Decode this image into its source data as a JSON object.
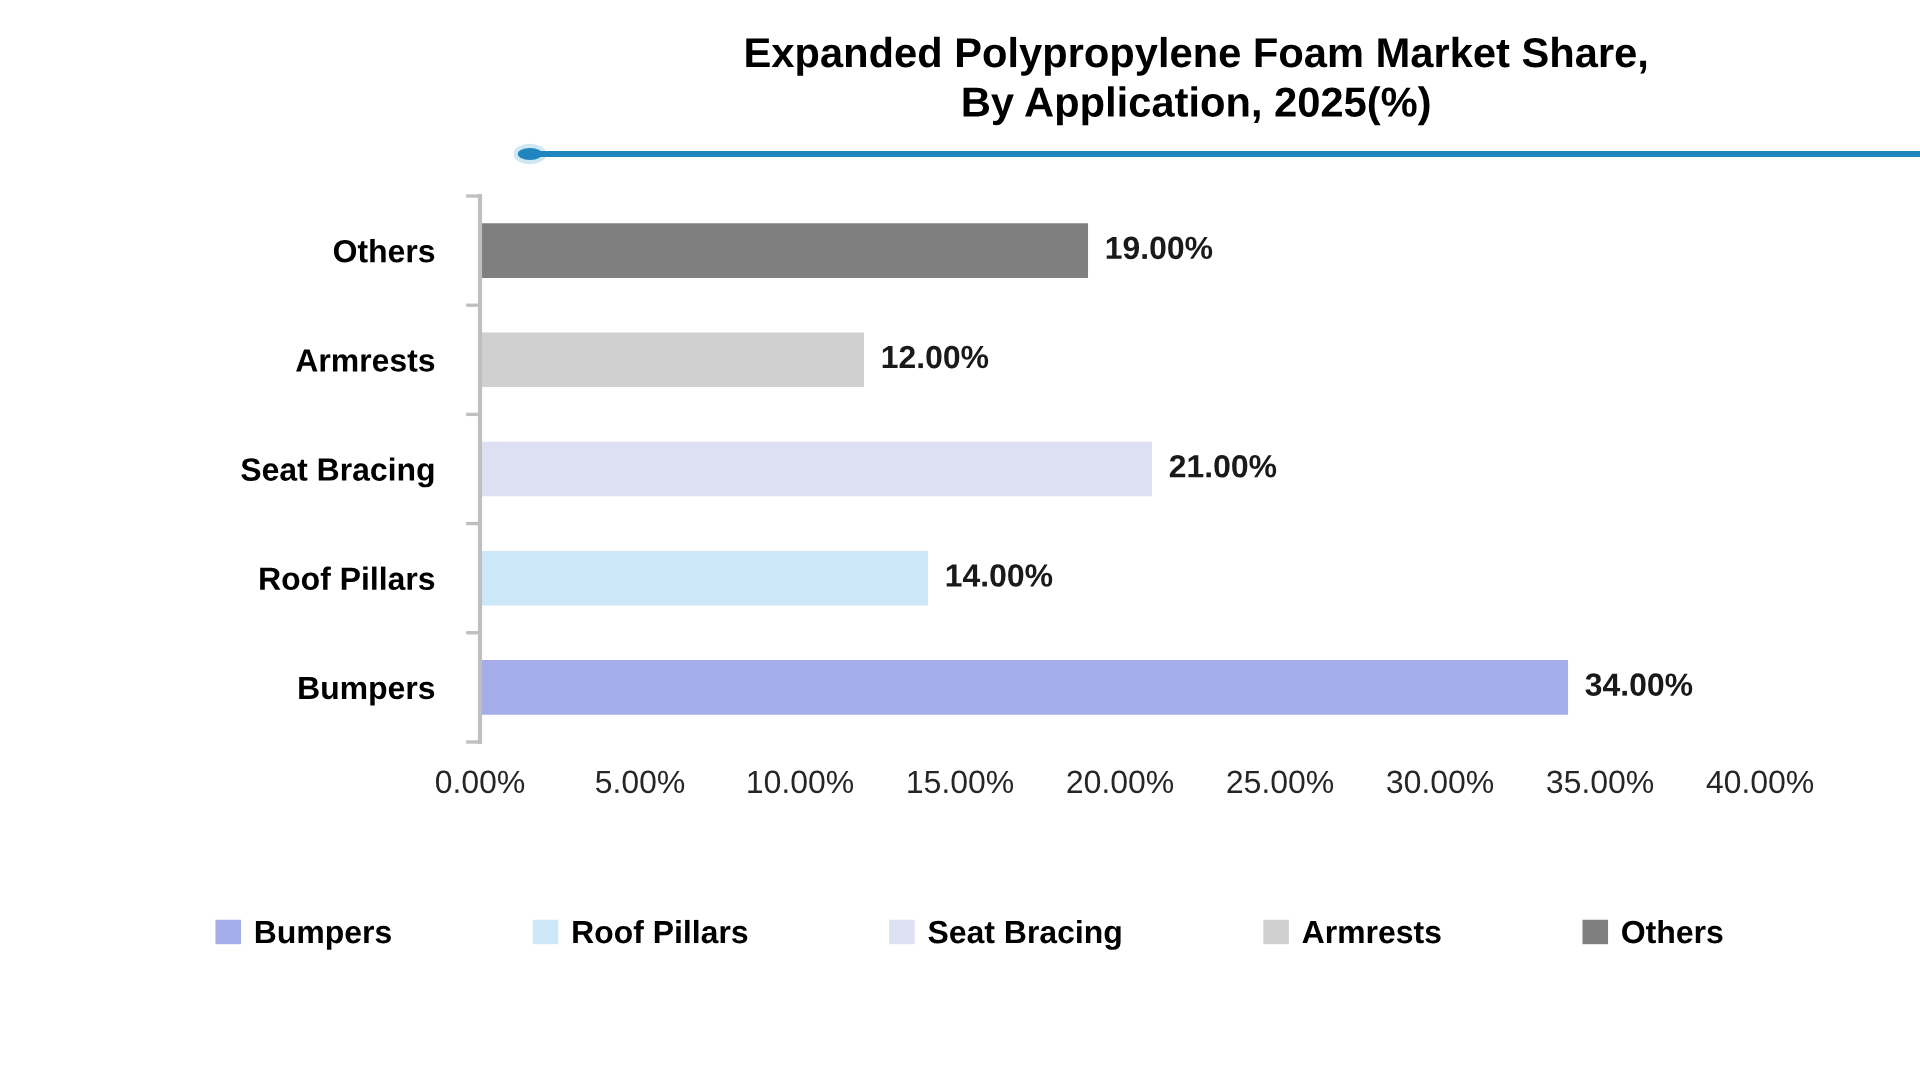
{
  "chart_data": {
    "type": "bar",
    "orientation": "horizontal",
    "stacked": true,
    "title": "Expanded Polypropylene Foam Market Share,\nBy Application, 2025(%)",
    "categories": [
      "Others",
      "Armrests",
      "Seat Bracing",
      "Roof Pillars",
      "Bumpers"
    ],
    "series": [
      {
        "name": "Bumpers",
        "color": "#a5acea",
        "values": [
          null,
          null,
          null,
          null,
          34
        ],
        "value_labels": [
          null,
          null,
          null,
          null,
          "34.00%"
        ]
      },
      {
        "name": "Roof Pillars",
        "color": "#cce8f8",
        "values": [
          null,
          null,
          null,
          14,
          null
        ],
        "value_labels": [
          null,
          null,
          null,
          "14.00%",
          null
        ]
      },
      {
        "name": "Seat Bracing",
        "color": "#dde0f2",
        "values": [
          null,
          null,
          21,
          null,
          null
        ],
        "value_labels": [
          null,
          null,
          "21.00%",
          null,
          null
        ]
      },
      {
        "name": "Armrests",
        "color": "#d0d0d0",
        "values": [
          null,
          12,
          null,
          null,
          null
        ],
        "value_labels": [
          null,
          "12.00%",
          null,
          null,
          null
        ]
      },
      {
        "name": "Others",
        "color": "#7f7f7f",
        "values": [
          19,
          null,
          null,
          null,
          null
        ],
        "value_labels": [
          "19.00%",
          null,
          null,
          null,
          null
        ]
      }
    ],
    "xlim": [
      0,
      40
    ],
    "xticks": [
      {
        "value": 0,
        "label": "0.00%"
      },
      {
        "value": 5,
        "label": "5.00%"
      },
      {
        "value": 10,
        "label": "10.00%"
      },
      {
        "value": 15,
        "label": "15.00%"
      },
      {
        "value": 20,
        "label": "20.00%"
      },
      {
        "value": 25,
        "label": "25.00%"
      },
      {
        "value": 30,
        "label": "30.00%"
      },
      {
        "value": 35,
        "label": "35.00%"
      },
      {
        "value": 40,
        "label": "40.00%"
      }
    ],
    "grid": false,
    "legend": "bottom"
  }
}
